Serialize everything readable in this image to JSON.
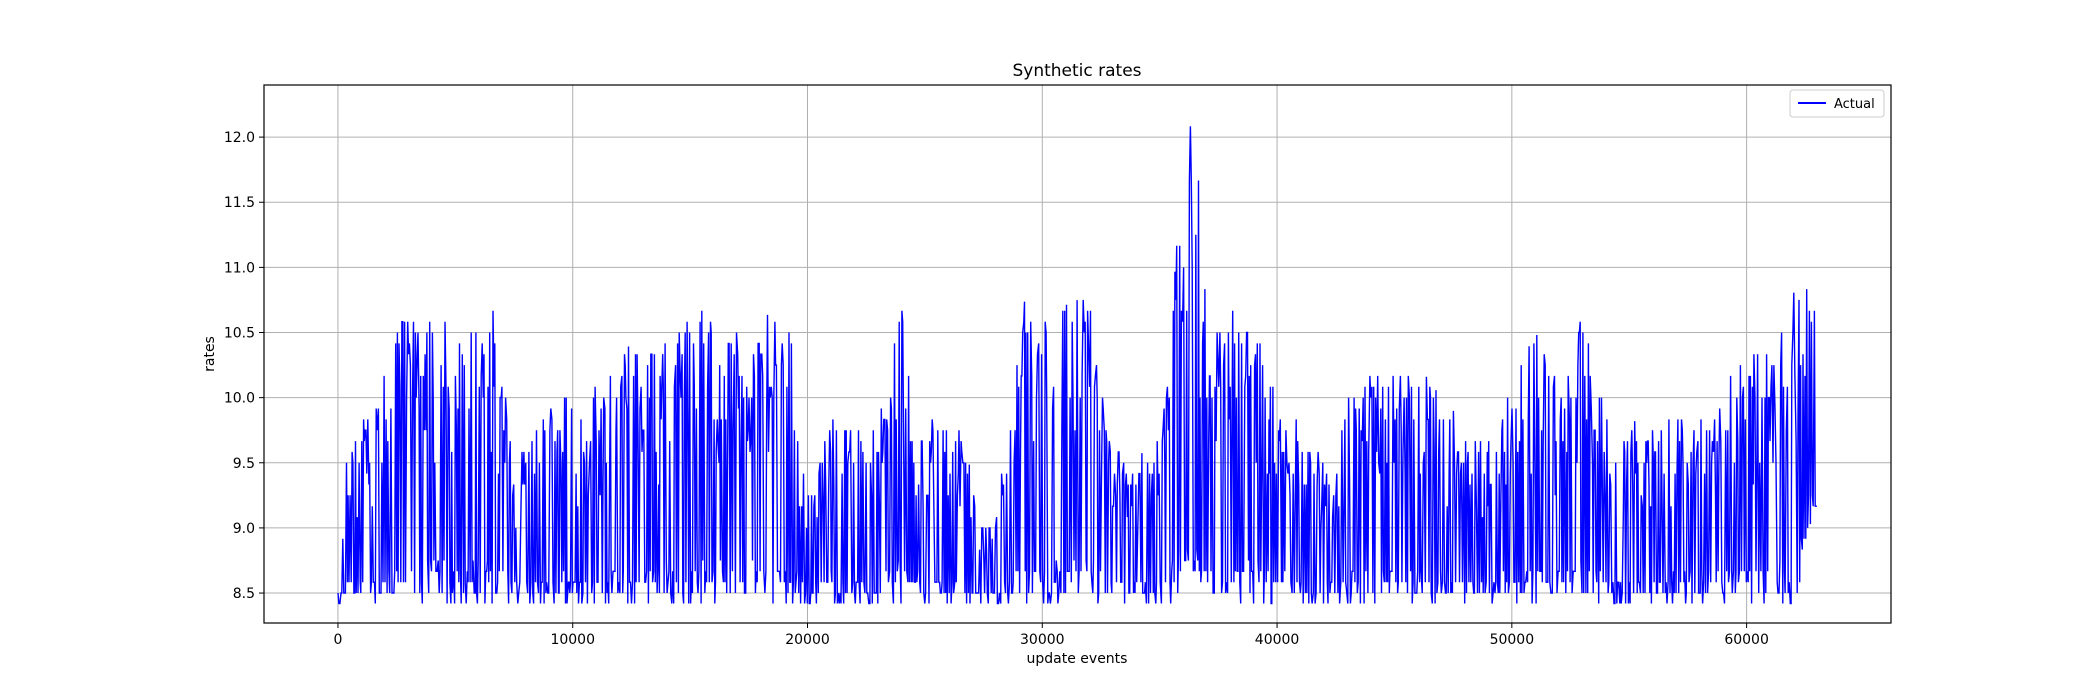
{
  "chart_data": {
    "type": "line",
    "title": "Synthetic rates",
    "xlabel": "update events",
    "ylabel": "rates",
    "xlim": [
      -3150,
      66150
    ],
    "ylim": [
      8.27,
      12.4
    ],
    "xticks": [
      0,
      10000,
      20000,
      30000,
      40000,
      50000,
      60000
    ],
    "xtick_labels": [
      "0",
      "10000",
      "20000",
      "30000",
      "40000",
      "50000",
      "60000"
    ],
    "yticks": [
      8.5,
      9.0,
      9.5,
      10.0,
      10.5,
      11.0,
      11.5,
      12.0
    ],
    "ytick_labels": [
      "8.5",
      "9.0",
      "9.5",
      "10.0",
      "10.5",
      "11.0",
      "11.5",
      "12.0"
    ],
    "grid": true,
    "legend_position": "top-right",
    "series": [
      {
        "name": "Actual",
        "color": "#0000ff",
        "envelope_x": [
          0,
          300,
          800,
          1500,
          2500,
          3500,
          4200,
          5000,
          5800,
          6600,
          7500,
          8500,
          9500,
          10500,
          11500,
          12500,
          13500,
          14500,
          15500,
          16500,
          17500,
          18500,
          19200,
          19700,
          20200,
          21000,
          22000,
          23000,
          23600,
          23900,
          24500,
          25500,
          26500,
          27500,
          28500,
          29200,
          29700,
          30500,
          31500,
          32200,
          32700,
          33500,
          34500,
          35300,
          35900,
          36200,
          36500,
          36800,
          37200,
          38000,
          39000,
          40000,
          41000,
          42000,
          43000,
          44000,
          45000,
          46000,
          47000,
          48000,
          49000,
          50000,
          51000,
          52000,
          53000,
          53500,
          54500,
          55500,
          56500,
          57500,
          58500,
          59500,
          60500,
          61500,
          62200,
          62600,
          63000
        ],
        "envelope_high": [
          8.5,
          9.5,
          9.75,
          10.0,
          10.67,
          10.58,
          10.75,
          10.42,
          10.58,
          10.67,
          9.6,
          9.8,
          10.07,
          10.0,
          10.2,
          10.42,
          10.4,
          10.58,
          10.75,
          10.5,
          10.5,
          10.67,
          10.84,
          9.5,
          9.3,
          9.9,
          9.75,
          9.8,
          10.3,
          11.0,
          9.85,
          9.85,
          9.8,
          9.0,
          9.6,
          10.75,
          10.6,
          10.67,
          10.75,
          10.83,
          9.8,
          9.5,
          9.6,
          10.0,
          11.67,
          12.25,
          12.1,
          11.3,
          10.5,
          10.67,
          10.67,
          10.0,
          9.9,
          9.5,
          10.0,
          10.2,
          10.17,
          10.25,
          10.0,
          9.8,
          9.67,
          10.1,
          10.5,
          10.2,
          10.67,
          10.3,
          9.6,
          9.9,
          9.85,
          10.0,
          9.9,
          10.25,
          10.42,
          10.5,
          10.92,
          10.92,
          10.75
        ],
        "envelope_low": [
          8.42,
          8.42,
          8.42,
          8.42,
          8.42,
          8.42,
          8.42,
          8.42,
          8.42,
          8.42,
          8.42,
          8.42,
          8.42,
          8.42,
          8.42,
          8.42,
          8.42,
          8.42,
          8.42,
          8.42,
          8.42,
          8.42,
          8.42,
          8.42,
          8.42,
          8.42,
          8.42,
          8.42,
          8.42,
          8.42,
          8.42,
          8.42,
          8.42,
          8.42,
          8.42,
          8.42,
          8.42,
          8.42,
          8.42,
          8.42,
          8.42,
          8.42,
          8.42,
          8.42,
          8.42,
          8.42,
          8.42,
          8.42,
          8.42,
          8.42,
          8.42,
          8.42,
          8.42,
          8.42,
          8.42,
          8.42,
          8.42,
          8.42,
          8.42,
          8.42,
          8.42,
          8.42,
          8.42,
          8.42,
          8.42,
          8.42,
          8.42,
          8.42,
          8.42,
          8.42,
          8.42,
          8.42,
          8.42,
          8.42,
          8.42,
          9.0,
          9.1
        ]
      }
    ]
  }
}
